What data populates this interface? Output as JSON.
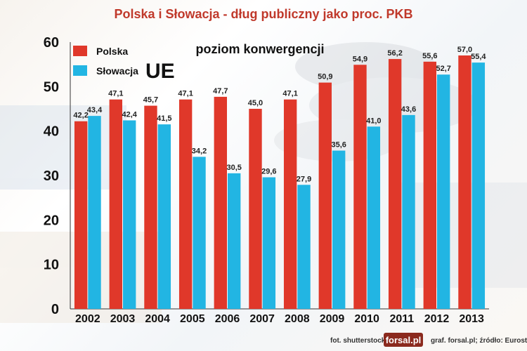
{
  "chart_data": {
    "type": "bar",
    "title": "Polska i Słowacja - dług publiczny jako proc. PKB",
    "categories": [
      "2002",
      "2003",
      "2004",
      "2005",
      "2006",
      "2007",
      "2008",
      "2009",
      "2010",
      "2011",
      "2012",
      "2013"
    ],
    "series": [
      {
        "name": "Polska",
        "color": "#e0382a",
        "values": [
          42.2,
          47.1,
          45.7,
          47.1,
          47.7,
          45.0,
          47.1,
          50.9,
          54.9,
          56.2,
          55.6,
          57.0
        ]
      },
      {
        "name": "Słowacja",
        "color": "#22b5e3",
        "values": [
          43.4,
          42.4,
          41.5,
          34.2,
          30.5,
          29.6,
          27.9,
          35.6,
          41.0,
          43.6,
          52.7,
          55.4
        ]
      }
    ],
    "value_labels": [
      [
        "42,2",
        "47,1",
        "45,7",
        "47,1",
        "47,7",
        "45,0",
        "47,1",
        "50,9",
        "54,9",
        "56,2",
        "55,6",
        "57,0"
      ],
      [
        "43,4",
        "42,4",
        "41,5",
        "34,2",
        "30,5",
        "29,6",
        "27,9",
        "35,6",
        "41,0",
        "43,6",
        "52,7",
        "55,4"
      ]
    ],
    "ylim": [
      0,
      60
    ],
    "yticks": [
      0,
      10,
      20,
      30,
      40,
      50,
      60
    ],
    "ytick_labels": [
      "0",
      "10",
      "20",
      "30",
      "40",
      "50",
      "60"
    ],
    "xlabel": "",
    "ylabel": "",
    "grid": false,
    "legend_position": "top-left",
    "annotations": {
      "convergence_label": "poziom konwergencji",
      "eu_label": "UE"
    }
  },
  "footer": {
    "photo_credit": "fot. shutterstock",
    "logo": "forsal.pl",
    "source": "graf. forsal.pl;  źródło: Eurostat"
  },
  "colors": {
    "title": "#c0392b",
    "logo_bg": "#8b2a1e"
  }
}
